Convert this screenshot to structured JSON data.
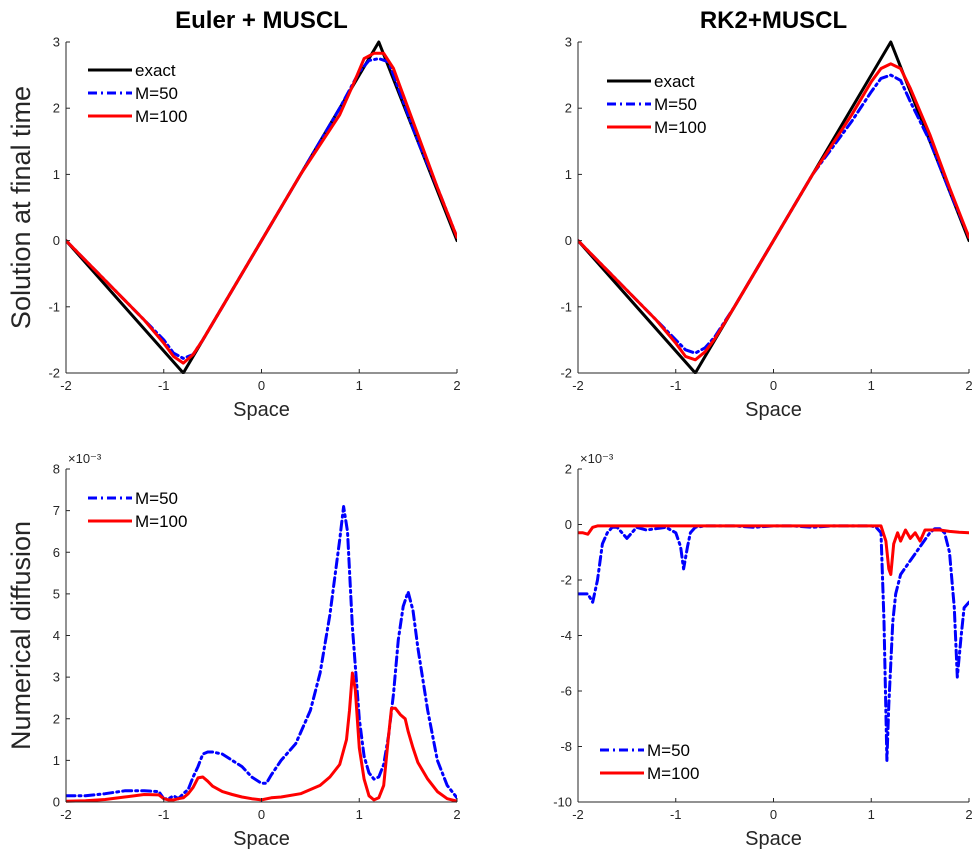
{
  "page": {
    "background": "#ffffff"
  },
  "colors": {
    "exact": "#000000",
    "m50": "#0000ff",
    "m100": "#ff0000",
    "axis": "#262626"
  },
  "chart_data": [
    {
      "id": "euler-solution",
      "type": "line",
      "title": "Euler + MUSCL",
      "xlabel": "Space",
      "ylabel": "Solution at final time",
      "xlim": [
        -2,
        2
      ],
      "ylim": [
        -2,
        3
      ],
      "xticks": [
        -2,
        -1,
        0,
        1,
        2
      ],
      "yticks": [
        -2,
        -1,
        0,
        1,
        2,
        3
      ],
      "xtick_labels": [
        "-2",
        "-1",
        "0",
        "1",
        "2"
      ],
      "ytick_labels": [
        "-2",
        "-1",
        "0",
        "1",
        "2",
        "3"
      ],
      "exponent_label": "",
      "legend": {
        "location": "top-left"
      },
      "series": [
        {
          "name": "exact",
          "color": "#000000",
          "style": "solid",
          "x": [
            -2,
            -0.8,
            1.2,
            2
          ],
          "y": [
            0,
            -2,
            3,
            0
          ]
        },
        {
          "name": "M=50",
          "color": "#0000ff",
          "style": "dashdot",
          "x": [
            -2,
            -1.6,
            -1.2,
            -1.0,
            -0.9,
            -0.8,
            -0.7,
            -0.6,
            -0.4,
            0,
            0.4,
            0.8,
            1.0,
            1.1,
            1.2,
            1.3,
            1.4,
            1.6,
            1.8,
            2.0
          ],
          "y": [
            0,
            -0.6,
            -1.2,
            -1.5,
            -1.7,
            -1.78,
            -1.72,
            -1.5,
            -1.0,
            0,
            1.0,
            2.0,
            2.55,
            2.72,
            2.75,
            2.7,
            2.3,
            1.5,
            0.8,
            0.05
          ]
        },
        {
          "name": "M=100",
          "color": "#ff0000",
          "style": "solid",
          "x": [
            -2,
            -1.6,
            -1.2,
            -1.0,
            -0.9,
            -0.8,
            -0.7,
            -0.6,
            -0.4,
            0,
            0.4,
            0.8,
            0.95,
            1.05,
            1.15,
            1.25,
            1.35,
            1.4,
            1.6,
            1.8,
            2.0
          ],
          "y": [
            0,
            -0.6,
            -1.2,
            -1.55,
            -1.75,
            -1.85,
            -1.72,
            -1.5,
            -1.0,
            0,
            1.0,
            1.9,
            2.4,
            2.75,
            2.83,
            2.83,
            2.6,
            2.4,
            1.6,
            0.8,
            0.05
          ]
        }
      ]
    },
    {
      "id": "rk2-solution",
      "type": "line",
      "title": "RK2+MUSCL",
      "xlabel": "Space",
      "ylabel": "",
      "xlim": [
        -2,
        2
      ],
      "ylim": [
        -2,
        3
      ],
      "xticks": [
        -2,
        -1,
        0,
        1,
        2
      ],
      "yticks": [
        -2,
        -1,
        0,
        1,
        2,
        3
      ],
      "xtick_labels": [
        "-2",
        "-1",
        "0",
        "1",
        "2"
      ],
      "ytick_labels": [
        "-2",
        "-1",
        "0",
        "1",
        "2",
        "3"
      ],
      "exponent_label": "",
      "legend": {
        "location": "top-left"
      },
      "series": [
        {
          "name": "exact",
          "color": "#000000",
          "style": "solid",
          "x": [
            -2,
            -0.8,
            1.2,
            2
          ],
          "y": [
            0,
            -2,
            3,
            0
          ]
        },
        {
          "name": "M=50",
          "color": "#0000ff",
          "style": "dashdot",
          "x": [
            -2,
            -1.6,
            -1.2,
            -1.0,
            -0.9,
            -0.8,
            -0.7,
            -0.6,
            -0.4,
            0,
            0.4,
            0.8,
            1.0,
            1.1,
            1.2,
            1.3,
            1.4,
            1.6,
            1.8,
            2.0
          ],
          "y": [
            0,
            -0.6,
            -1.2,
            -1.5,
            -1.65,
            -1.7,
            -1.62,
            -1.45,
            -1.0,
            0,
            1.0,
            1.8,
            2.25,
            2.45,
            2.5,
            2.42,
            2.1,
            1.5,
            0.75,
            0.05
          ]
        },
        {
          "name": "M=100",
          "color": "#ff0000",
          "style": "solid",
          "x": [
            -2,
            -1.6,
            -1.2,
            -1.0,
            -0.9,
            -0.8,
            -0.7,
            -0.6,
            -0.4,
            0,
            0.4,
            0.8,
            1.0,
            1.1,
            1.2,
            1.3,
            1.4,
            1.6,
            1.8,
            2.0
          ],
          "y": [
            0,
            -0.6,
            -1.2,
            -1.55,
            -1.75,
            -1.8,
            -1.68,
            -1.48,
            -1.0,
            0,
            1.0,
            1.9,
            2.4,
            2.6,
            2.67,
            2.6,
            2.3,
            1.6,
            0.8,
            0.05
          ]
        }
      ]
    },
    {
      "id": "euler-diffusion",
      "type": "line",
      "title": "",
      "xlabel": "Space",
      "ylabel": "Numerical diffusion",
      "xlim": [
        -2,
        2
      ],
      "ylim": [
        0,
        8
      ],
      "xticks": [
        -2,
        -1,
        0,
        1,
        2
      ],
      "yticks": [
        0,
        1,
        2,
        3,
        4,
        5,
        6,
        7,
        8
      ],
      "xtick_labels": [
        "-2",
        "-1",
        "0",
        "1",
        "2"
      ],
      "ytick_labels": [
        "0",
        "1",
        "2",
        "3",
        "4",
        "5",
        "6",
        "7",
        "8"
      ],
      "exponent_label": "×10⁻³",
      "legend": {
        "location": "top-left"
      },
      "series": [
        {
          "name": "M=50",
          "color": "#0000ff",
          "style": "dashdot",
          "x": [
            -2,
            -1.8,
            -1.6,
            -1.4,
            -1.2,
            -1.05,
            -1.0,
            -0.95,
            -0.9,
            -0.85,
            -0.8,
            -0.75,
            -0.7,
            -0.65,
            -0.6,
            -0.55,
            -0.5,
            -0.4,
            -0.3,
            -0.2,
            -0.1,
            0,
            0.05,
            0.1,
            0.2,
            0.35,
            0.5,
            0.6,
            0.7,
            0.8,
            0.84,
            0.88,
            0.93,
            1.0,
            1.05,
            1.1,
            1.15,
            1.2,
            1.25,
            1.3,
            1.35,
            1.4,
            1.45,
            1.5,
            1.55,
            1.6,
            1.7,
            1.8,
            1.9,
            2.0
          ],
          "y": [
            0.15,
            0.15,
            0.2,
            0.27,
            0.27,
            0.25,
            0.08,
            0.08,
            0.15,
            0.08,
            0.2,
            0.3,
            0.6,
            0.85,
            1.15,
            1.2,
            1.2,
            1.15,
            1.0,
            0.85,
            0.6,
            0.45,
            0.45,
            0.65,
            1.0,
            1.4,
            2.2,
            3.1,
            4.5,
            6.3,
            7.1,
            6.5,
            4.2,
            2.0,
            1.1,
            0.7,
            0.55,
            0.6,
            0.9,
            1.6,
            2.6,
            3.9,
            4.7,
            5.05,
            4.6,
            3.7,
            2.2,
            1.0,
            0.4,
            0.1
          ]
        },
        {
          "name": "M=100",
          "color": "#ff0000",
          "style": "solid",
          "x": [
            -2,
            -1.8,
            -1.6,
            -1.4,
            -1.2,
            -1.05,
            -1.0,
            -0.95,
            -0.9,
            -0.85,
            -0.8,
            -0.75,
            -0.7,
            -0.65,
            -0.6,
            -0.55,
            -0.5,
            -0.4,
            -0.3,
            -0.2,
            -0.1,
            0,
            0.1,
            0.2,
            0.4,
            0.6,
            0.7,
            0.8,
            0.87,
            0.9,
            0.93,
            0.96,
            1.0,
            1.05,
            1.1,
            1.15,
            1.2,
            1.25,
            1.3,
            1.33,
            1.37,
            1.42,
            1.47,
            1.5,
            1.55,
            1.6,
            1.7,
            1.8,
            1.9,
            2.0
          ],
          "y": [
            0.02,
            0.03,
            0.06,
            0.12,
            0.18,
            0.17,
            0.08,
            0.05,
            0.05,
            0.08,
            0.1,
            0.2,
            0.35,
            0.58,
            0.6,
            0.5,
            0.38,
            0.25,
            0.18,
            0.12,
            0.08,
            0.05,
            0.1,
            0.12,
            0.2,
            0.4,
            0.6,
            0.9,
            1.5,
            2.2,
            3.1,
            2.7,
            1.3,
            0.55,
            0.15,
            0.05,
            0.1,
            0.4,
            1.6,
            2.25,
            2.25,
            2.1,
            2.0,
            1.7,
            1.3,
            0.95,
            0.55,
            0.25,
            0.08,
            0.02
          ]
        }
      ]
    },
    {
      "id": "rk2-diffusion",
      "type": "line",
      "title": "",
      "xlabel": "Space",
      "ylabel": "",
      "xlim": [
        -2,
        2
      ],
      "ylim": [
        -10,
        2
      ],
      "xticks": [
        -2,
        -1,
        0,
        1,
        2
      ],
      "yticks": [
        -10,
        -8,
        -6,
        -4,
        -2,
        0,
        2
      ],
      "xtick_labels": [
        "-2",
        "-1",
        "0",
        "1",
        "2"
      ],
      "ytick_labels": [
        "-10",
        "-8",
        "-6",
        "-4",
        "-2",
        "0",
        "2"
      ],
      "exponent_label": "×10⁻³",
      "legend": {
        "location": "bottom-left"
      },
      "series": [
        {
          "name": "M=50",
          "color": "#0000ff",
          "style": "dashdot",
          "x": [
            -2,
            -1.9,
            -1.85,
            -1.8,
            -1.75,
            -1.7,
            -1.65,
            -1.6,
            -1.55,
            -1.5,
            -1.45,
            -1.4,
            -1.35,
            -1.3,
            -1.2,
            -1.1,
            -1.0,
            -0.95,
            -0.92,
            -0.88,
            -0.85,
            -0.8,
            -0.7,
            -0.6,
            -0.4,
            -0.2,
            0,
            0.2,
            0.4,
            0.6,
            0.8,
            1.0,
            1.05,
            1.1,
            1.13,
            1.16,
            1.18,
            1.22,
            1.25,
            1.3,
            1.4,
            1.5,
            1.6,
            1.65,
            1.7,
            1.75,
            1.8,
            1.85,
            1.88,
            1.92,
            1.95,
            2.0
          ],
          "y": [
            -2.5,
            -2.5,
            -2.8,
            -2.0,
            -0.7,
            -0.3,
            -0.1,
            -0.1,
            -0.3,
            -0.5,
            -0.3,
            -0.1,
            -0.15,
            -0.2,
            -0.15,
            -0.1,
            -0.3,
            -0.8,
            -1.6,
            -0.8,
            -0.3,
            -0.1,
            -0.05,
            -0.05,
            -0.05,
            -0.1,
            -0.05,
            -0.05,
            -0.1,
            -0.05,
            -0.05,
            -0.05,
            -0.1,
            -0.3,
            -3.5,
            -8.5,
            -6.5,
            -3.5,
            -2.5,
            -1.8,
            -1.3,
            -0.8,
            -0.3,
            -0.15,
            -0.15,
            -0.3,
            -1.0,
            -3.0,
            -5.5,
            -4.0,
            -3.0,
            -2.8
          ]
        },
        {
          "name": "M=100",
          "color": "#ff0000",
          "style": "solid",
          "x": [
            -2,
            -1.95,
            -1.9,
            -1.85,
            -1.8,
            -1.7,
            -1.6,
            -1.5,
            -1.4,
            -1.2,
            -1.0,
            -0.9,
            -0.8,
            -0.6,
            -0.4,
            -0.2,
            0,
            0.2,
            0.4,
            0.6,
            0.8,
            1.0,
            1.1,
            1.15,
            1.18,
            1.2,
            1.23,
            1.27,
            1.3,
            1.35,
            1.4,
            1.45,
            1.5,
            1.55,
            1.6,
            1.7,
            1.8,
            1.9,
            2.0
          ],
          "y": [
            -0.3,
            -0.3,
            -0.35,
            -0.1,
            -0.05,
            -0.05,
            -0.05,
            -0.05,
            -0.05,
            -0.05,
            -0.05,
            -0.05,
            -0.05,
            -0.05,
            -0.05,
            -0.05,
            -0.05,
            -0.05,
            -0.05,
            -0.05,
            -0.05,
            -0.05,
            -0.05,
            -0.6,
            -1.6,
            -1.8,
            -0.7,
            -0.3,
            -0.6,
            -0.2,
            -0.5,
            -0.3,
            -0.6,
            -0.2,
            -0.2,
            -0.2,
            -0.25,
            -0.28,
            -0.3
          ]
        }
      ]
    }
  ]
}
